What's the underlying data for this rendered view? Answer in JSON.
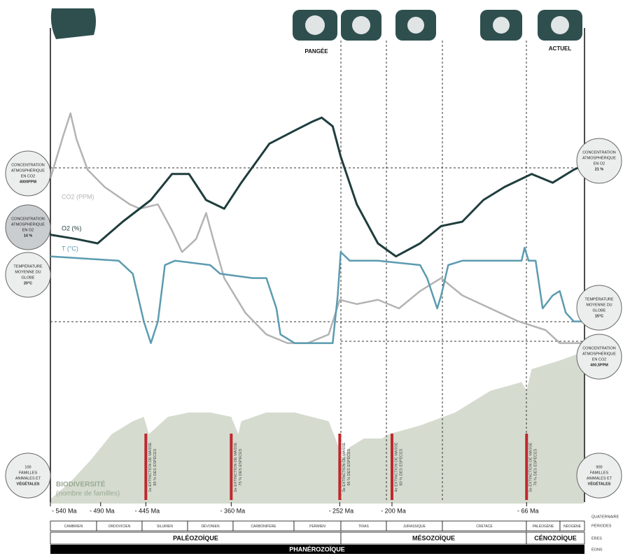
{
  "chart_data": {
    "type": "line",
    "xlim": [
      -540,
      0
    ],
    "ylim": [
      0,
      100
    ],
    "xticks": [
      {
        "value": -540,
        "label": "- 540 Ma"
      },
      {
        "value": -490,
        "label": "- 490 Ma"
      },
      {
        "value": -445,
        "label": "- 445 Ma"
      },
      {
        "value": -360,
        "label": "- 360 Ma"
      },
      {
        "value": -252,
        "label": "- 252 Ma"
      },
      {
        "value": -200,
        "label": "- 200 Ma"
      },
      {
        "value": -66,
        "label": "- 66 Ma"
      }
    ],
    "series": [
      {
        "name": "CO2 (PPM)",
        "color": "#b3b3b3",
        "x": [
          -540,
          -527,
          -520,
          -514,
          -503,
          -486,
          -461,
          -451,
          -433,
          -419,
          -409,
          -395,
          -385,
          -378,
          -367,
          -346,
          -325,
          -304,
          -284,
          -263,
          -252,
          -235,
          -214,
          -193,
          -172,
          -151,
          -130,
          -102,
          -74,
          -47,
          -33,
          -9
        ],
        "values": [
          75,
          85,
          90,
          84,
          77,
          73,
          69,
          68,
          69,
          63,
          58,
          61,
          67,
          61,
          52,
          44,
          39,
          37,
          37,
          39,
          47,
          46,
          47,
          45,
          49,
          52,
          48,
          45,
          42,
          40,
          37,
          37
        ]
      },
      {
        "name": "O2 (%)",
        "color": "#1f3d3d",
        "x": [
          -540,
          -514,
          -493,
          -468,
          -440,
          -419,
          -402,
          -385,
          -367,
          -350,
          -322,
          -297,
          -280,
          -270,
          -259,
          -251,
          -235,
          -214,
          -196,
          -172,
          -151,
          -130,
          -109,
          -88,
          -61,
          -40,
          -19,
          -9
        ],
        "values": [
          62,
          61,
          60,
          65,
          70,
          76,
          76,
          70,
          68,
          74,
          83,
          86,
          88,
          89,
          87,
          80,
          69,
          60,
          57,
          60,
          64,
          65,
          70,
          73,
          76,
          74,
          77,
          78
        ]
      },
      {
        "name": "T (°C)",
        "color": "#5b9bb0",
        "x": [
          -540,
          -472,
          -458,
          -447,
          -440,
          -433,
          -426,
          -416,
          -381,
          -371,
          -339,
          -325,
          -315,
          -311,
          -297,
          -277,
          -259,
          -254,
          -251,
          -242,
          -214,
          -172,
          -165,
          -155,
          -151,
          -144,
          -130,
          -102,
          -71,
          -68,
          -64,
          -57,
          -50,
          -40,
          -33,
          -27,
          -19,
          -9
        ],
        "values": [
          57,
          56,
          53,
          42,
          37,
          42,
          55,
          56,
          55,
          53,
          52,
          52,
          45,
          39,
          37,
          37,
          37,
          48,
          58,
          56,
          56,
          55,
          52,
          45,
          48,
          55,
          56,
          56,
          56,
          59,
          56,
          56,
          45,
          48,
          49,
          44,
          42,
          42
        ]
      },
      {
        "name": "BIODIVERSITÉ",
        "unit": "(nombre de familles)",
        "color": "#d5dccf",
        "area": true,
        "x": [
          -540,
          -520,
          -500,
          -479,
          -458,
          -447,
          -442,
          -423,
          -402,
          -381,
          -360,
          -353,
          -350,
          -325,
          -297,
          -263,
          -253,
          -251,
          -242,
          -228,
          -210,
          -203,
          -172,
          -137,
          -102,
          -71,
          -66,
          -61,
          -33,
          -9
        ],
        "values": [
          1,
          5,
          10,
          16,
          19,
          20,
          16,
          20,
          21,
          21,
          20,
          16,
          19,
          21,
          21,
          19,
          13,
          10,
          13,
          15,
          15,
          16,
          18,
          21,
          26,
          28,
          26,
          31,
          33,
          35
        ]
      }
    ],
    "extinctions": [
      {
        "x": -445,
        "label": [
          "1e EXTINCTION DE MASSE",
          "85 % DES ESPÈCES"
        ]
      },
      {
        "x": -360,
        "label": [
          "2e EXTINCTION DE MASSE",
          "75 % DES ESPÈCES"
        ]
      },
      {
        "x": -252,
        "label": [
          "3e EXTINCTION DE MASSE",
          "96 % DES ESPÈCES"
        ]
      },
      {
        "x": -200,
        "label": [
          "4e EXTINCTION DE MASSE",
          "80 % DES ESPÈCES"
        ]
      },
      {
        "x": -66,
        "label": [
          "5e EXTINCTION DE MASSE",
          "76 % DES ESPÈCES"
        ]
      }
    ],
    "annotations": [
      "PANGÉE",
      "ACTUEL"
    ],
    "left_badges": [
      [
        "CONCENTRATION",
        "ATMOSPHÉRIQUE",
        "EN CO2",
        "4000PPM"
      ],
      [
        "CONCENTRATION",
        "ATMOSPHÉRIQUE",
        "EN O2",
        "14 %"
      ],
      [
        "TEMPÉRATURE",
        "MOYENNE DU",
        "GLOBE",
        "20°C"
      ],
      [
        "100",
        "FAMILLES",
        "ANIMALES ET",
        "VÉGÉTALES"
      ]
    ],
    "right_badges": [
      [
        "CONCENTRATION",
        "ATMOSPHÉRIQUE",
        "EN O2",
        "21 %"
      ],
      [
        "TEMPÉRATURE",
        "MOYENNE DU",
        "GLOBE",
        "15°C"
      ],
      [
        "CONCENTRATION",
        "ATMOSPHÉRIQUE",
        "EN CO2",
        "400,5PPM"
      ],
      [
        "900",
        "FAMILLES",
        "ANIMALES ET",
        "VÉGÉTALES"
      ]
    ],
    "periods": [
      "CAMBRIEN",
      "ORDOVICIEN",
      "SILURIEN",
      "DÉVONIEN",
      "CARBONIFÈRE",
      "PERMIEN",
      "TRIAS",
      "JURASSIQUE",
      "CRÉTACÉ",
      "PALÉOGÈNE",
      "NÉOGÈNE"
    ],
    "eras": [
      "PALÉOZOÏQUE",
      "MÉSOZOÏQUE",
      "CÉNOZOÏQUE"
    ],
    "eon": "PHANÉROZOÏQUE",
    "levels": [
      "QUATERNAIRE",
      "PÉRIODES",
      "ÈRES",
      "ÉONS"
    ]
  }
}
